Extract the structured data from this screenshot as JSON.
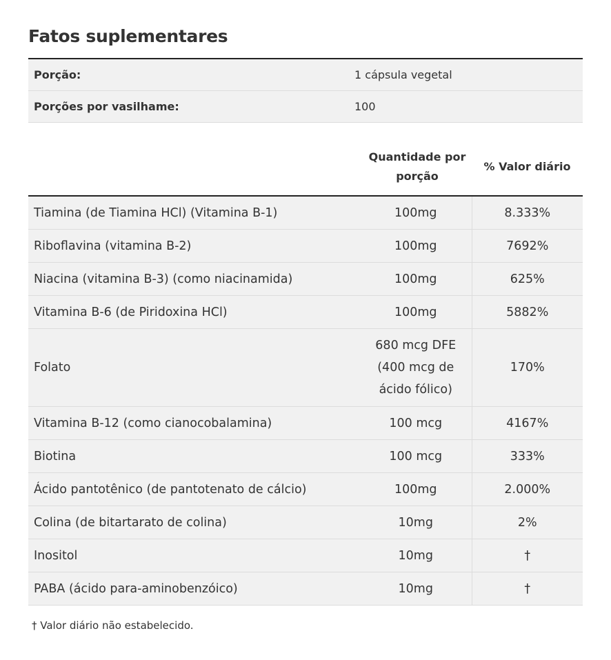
{
  "title": "Fatos suplementares",
  "serving": [
    {
      "label": "Porção:",
      "value": "1 cápsula vegetal"
    },
    {
      "label": "Porções por vasilhame:",
      "value": "100"
    }
  ],
  "headers": {
    "name": "",
    "amount": "Quantidade por porção",
    "dv": "% Valor diário"
  },
  "rows": [
    {
      "name": "Tiamina (de Tiamina HCl) (Vitamina B-1)",
      "amount": "100mg",
      "dv": "8.333%"
    },
    {
      "name": "Riboflavina (vitamina B-2)",
      "amount": "100mg",
      "dv": "7692%"
    },
    {
      "name": "Niacina (vitamina B-3) (como niacinamida)",
      "amount": "100mg",
      "dv": "625%"
    },
    {
      "name": "Vitamina B-6 (de Piridoxina HCl)",
      "amount": "100mg",
      "dv": "5882%"
    },
    {
      "name": "Folato",
      "amount": "680 mcg DFE (400 mcg de ácido fólico)",
      "dv": "170%"
    },
    {
      "name": "Vitamina B-12 (como cianocobalamina)",
      "amount": "100 mcg",
      "dv": "4167%"
    },
    {
      "name": "Biotina",
      "amount": "100 mcg",
      "dv": "333%"
    },
    {
      "name": "Ácido pantotênico (de pantotenato de cálcio)",
      "amount": "100mg",
      "dv": "2.000%"
    },
    {
      "name": "Colina (de bitartarato de colina)",
      "amount": "10mg",
      "dv": "2%"
    },
    {
      "name": "Inositol",
      "amount": "10mg",
      "dv": "†"
    },
    {
      "name": "PABA (ácido para-aminobenzóico)",
      "amount": "10mg",
      "dv": "†"
    }
  ],
  "footnote": "† Valor diário não estabelecido."
}
